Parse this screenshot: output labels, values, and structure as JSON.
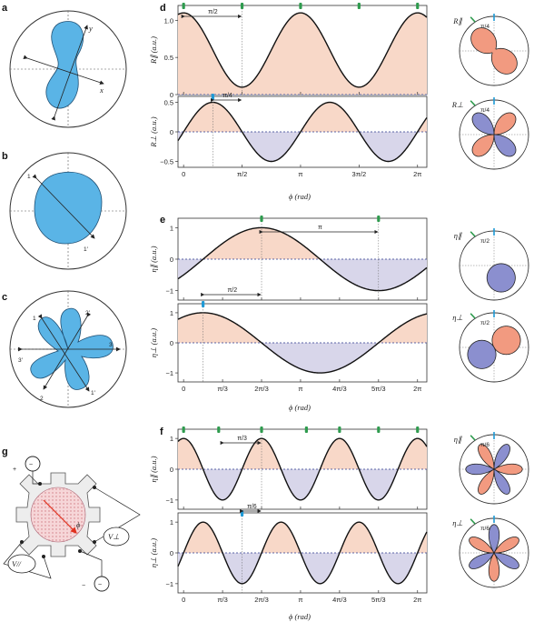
{
  "panel_labels": {
    "a": "a",
    "b": "b",
    "c": "c",
    "d": "d",
    "e": "e",
    "f": "f",
    "g": "g"
  },
  "panel_a": {
    "axis_x": "x",
    "axis_y": "y"
  },
  "panel_b": {
    "mark_1": "1",
    "mark_1p": "1′"
  },
  "panel_c": {
    "marks": [
      "1",
      "2′",
      "3",
      "3′",
      "2",
      "1′"
    ]
  },
  "panel_g": {
    "plus": "+",
    "minus": "−",
    "source": "~",
    "phi": "ϕ",
    "v_perp": "V⊥",
    "v_par": "V//"
  },
  "colors": {
    "positive": "#f8d8c8",
    "negative": "#d8d6ea",
    "lobe_pos": "#f29a80",
    "lobe_neg": "#8b8fcf",
    "blue": "#5ab4e6",
    "green": "#2e9b4e",
    "cyan": "#1e9ad6"
  },
  "xlabel": "ϕ (rad)",
  "chart_data": [
    {
      "id": "d-top",
      "type": "line",
      "ylabel": "R∥ (a.u.)",
      "function": "0.6+0.5*cos(2x)",
      "yticks": [
        "0",
        "0.5",
        "1.0"
      ],
      "ylim": [
        0,
        1.2
      ],
      "xticks": [
        "0",
        "π/2",
        "π",
        "3π/2",
        "2π"
      ],
      "annotation": "π/2",
      "polar_label": "R∥",
      "polar_angle_label": "π/4"
    },
    {
      "id": "d-bot",
      "type": "line",
      "ylabel": "R⊥ (a.u.)",
      "function": "0.5*sin(2x)",
      "yticks": [
        "−0.5",
        "0",
        "0.5"
      ],
      "ylim": [
        -0.6,
        0.6
      ],
      "xticks": [
        "0",
        "π/2",
        "π",
        "3π/2",
        "2π"
      ],
      "annotation": "π/4",
      "polar_label": "R⊥",
      "polar_angle_label": "π/4"
    },
    {
      "id": "e-top",
      "type": "line",
      "ylabel": "η∥ (a.u.)",
      "function": "cos(x-2π/3)",
      "yticks": [
        "−1",
        "0",
        "1"
      ],
      "ylim": [
        -1.3,
        1.3
      ],
      "xticks": [
        "0",
        "π/3",
        "2π/3",
        "π",
        "4π/3",
        "5π/3",
        "2π"
      ],
      "annotation": "π",
      "polar_label": "η∥",
      "polar_angle_label": "π/2"
    },
    {
      "id": "e-bot",
      "type": "line",
      "ylabel": "η⊥ (a.u.)",
      "function": "cos(x-π/6)",
      "yticks": [
        "−1",
        "0",
        "1"
      ],
      "ylim": [
        -1.3,
        1.3
      ],
      "xticks": [
        "0",
        "π/3",
        "2π/3",
        "π",
        "4π/3",
        "5π/3",
        "2π"
      ],
      "annotation": "π/2",
      "polar_label": "η⊥",
      "polar_angle_label": "π/2"
    },
    {
      "id": "f-top",
      "type": "line",
      "ylabel": "η∥ (a.u.)",
      "function": "cos(3x-2π)",
      "yticks": [
        "−1",
        "0",
        "1"
      ],
      "ylim": [
        -1.3,
        1.3
      ],
      "xticks": [
        "0",
        "π/3",
        "2π/3",
        "π",
        "4π/3",
        "5π/3",
        "2π"
      ],
      "annotation": "π/3",
      "polar_label": "η∥",
      "polar_angle_label": "π/6"
    },
    {
      "id": "f-bot",
      "type": "line",
      "ylabel": "η⊥ (a.u.)",
      "function": "-cos(3x+π/2)",
      "yticks": [
        "−1",
        "0",
        "1"
      ],
      "ylim": [
        -1.3,
        1.3
      ],
      "xticks": [
        "0",
        "π/3",
        "2π/3",
        "π",
        "4π/3",
        "5π/3",
        "2π"
      ],
      "annotation": "π/6",
      "polar_label": "η⊥",
      "polar_angle_label": "π/6"
    }
  ]
}
